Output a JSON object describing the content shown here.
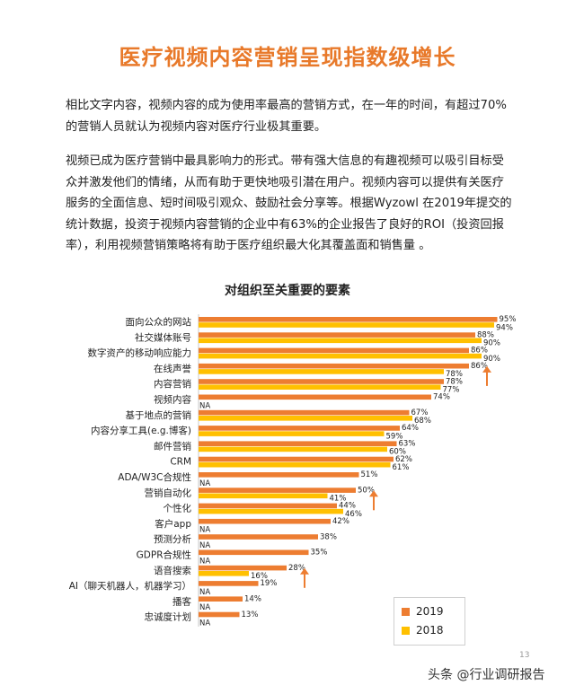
{
  "page": {
    "title": "医疗视频内容营销呈现指数级增长",
    "paragraph1": "相比文字内容，视频内容的成为使用率最高的营销方式，在一年的时间，有超过70%的营销人员就认为视频内容对医疗行业极其重要。",
    "paragraph2": "视频已成为医疗营销中最具影响力的形式。带有强大信息的有趣视频可以吸引目标受众并激发他们的情绪，从而有助于更快地吸引潜在用户。视频内容可以提供有关医疗服务的全面信息、短时间吸引观众、鼓励社会分享等。根据Wyzowl 在2019年提交的统计数据，投资于视频内容营销的企业中有63%的企业报告了良好的ROI（投资回报率），利用视频营销策略将有助于医疗组织最大化其覆盖面和销售量 。",
    "page_number": "13",
    "watermark": "头条 @行业调研报告"
  },
  "chart_data": {
    "type": "bar",
    "orientation": "horizontal",
    "title": "对组织至关重要的要素",
    "xlabel": "",
    "ylabel": "",
    "xlim": [
      0,
      100
    ],
    "categories": [
      "面向公众的网站",
      "社交媒体账号",
      "数字资产的移动响应能力",
      "在线声誉",
      "内容营销",
      "视频内容",
      "基于地点的营销",
      "内容分享工具(e.g.博客)",
      "邮件营销",
      "CRM",
      "ADA/W3C合规性",
      "营销自动化",
      "个性化",
      "客户app",
      "预测分析",
      "GDPR合规性",
      "语音搜索",
      "AI（聊天机器人，机器学习）",
      "播客",
      "忠诚度计划"
    ],
    "series": [
      {
        "name": "2019",
        "color": "#ed7d31",
        "values": [
          95,
          88,
          86,
          86,
          78,
          74,
          67,
          64,
          63,
          62,
          51,
          50,
          44,
          42,
          38,
          35,
          28,
          19,
          14,
          13
        ],
        "labels": [
          "95%",
          "88%",
          "86%",
          "86%",
          "78%",
          "74%",
          "67%",
          "64%",
          "63%",
          "62%",
          "51%",
          "50%",
          "44%",
          "42%",
          "38%",
          "35%",
          "28%",
          "19%",
          "14%",
          "13%"
        ]
      },
      {
        "name": "2018",
        "color": "#ffc000",
        "values": [
          94,
          90,
          90,
          78,
          77,
          null,
          68,
          59,
          60,
          61,
          null,
          41,
          46,
          null,
          null,
          null,
          16,
          null,
          null,
          null
        ],
        "labels": [
          "94%",
          "90%",
          "90%",
          "78%",
          "77%",
          "NA",
          "68%",
          "59%",
          "60%",
          "61%",
          "NA",
          "41%",
          "46%",
          "NA",
          "NA",
          "NA",
          "16%",
          "NA",
          "NA",
          "NA"
        ]
      }
    ],
    "annotations": [
      "up-arrow",
      "up-arrow",
      "up-arrow"
    ],
    "legend_position": "bottom-right",
    "grid": false
  }
}
